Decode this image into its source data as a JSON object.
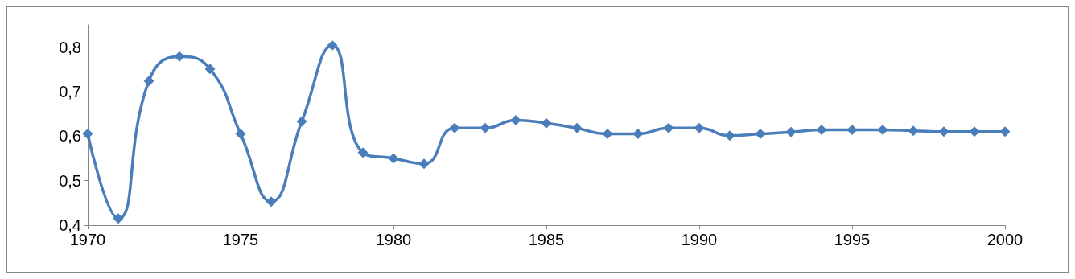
{
  "chart_data": {
    "type": "line",
    "x": [
      1970,
      1971,
      1972,
      1973,
      1974,
      1975,
      1976,
      1977,
      1978,
      1979,
      1980,
      1981,
      1982,
      1983,
      1984,
      1985,
      1986,
      1987,
      1988,
      1989,
      1990,
      1991,
      1992,
      1993,
      1994,
      1995,
      1996,
      1997,
      1998,
      1999,
      2000
    ],
    "series": [
      {
        "color": "#4a7ebb",
        "values": [
          0.605,
          0.415,
          0.724,
          0.779,
          0.751,
          0.605,
          0.453,
          0.633,
          0.804,
          0.563,
          0.55,
          0.538,
          0.618,
          0.618,
          0.636,
          0.629,
          0.618,
          0.605,
          0.605,
          0.618,
          0.618,
          0.601,
          0.605,
          0.609,
          0.614,
          0.614,
          0.614,
          0.612,
          0.61,
          0.61,
          0.61
        ]
      }
    ],
    "xlim": [
      1970,
      2000
    ],
    "xticks": [
      1970,
      1975,
      1980,
      1985,
      1990,
      1995,
      2000
    ],
    "ylim": [
      0.4,
      0.85
    ],
    "yticks": [
      {
        "value": 0.4,
        "label": "0,4"
      },
      {
        "value": 0.5,
        "label": "0,5"
      },
      {
        "value": 0.6,
        "label": "0,6"
      },
      {
        "value": 0.7,
        "label": "0,7"
      },
      {
        "value": 0.8,
        "label": "0,8"
      }
    ],
    "grid": false,
    "marker": "diamond",
    "line_style": "solid"
  }
}
